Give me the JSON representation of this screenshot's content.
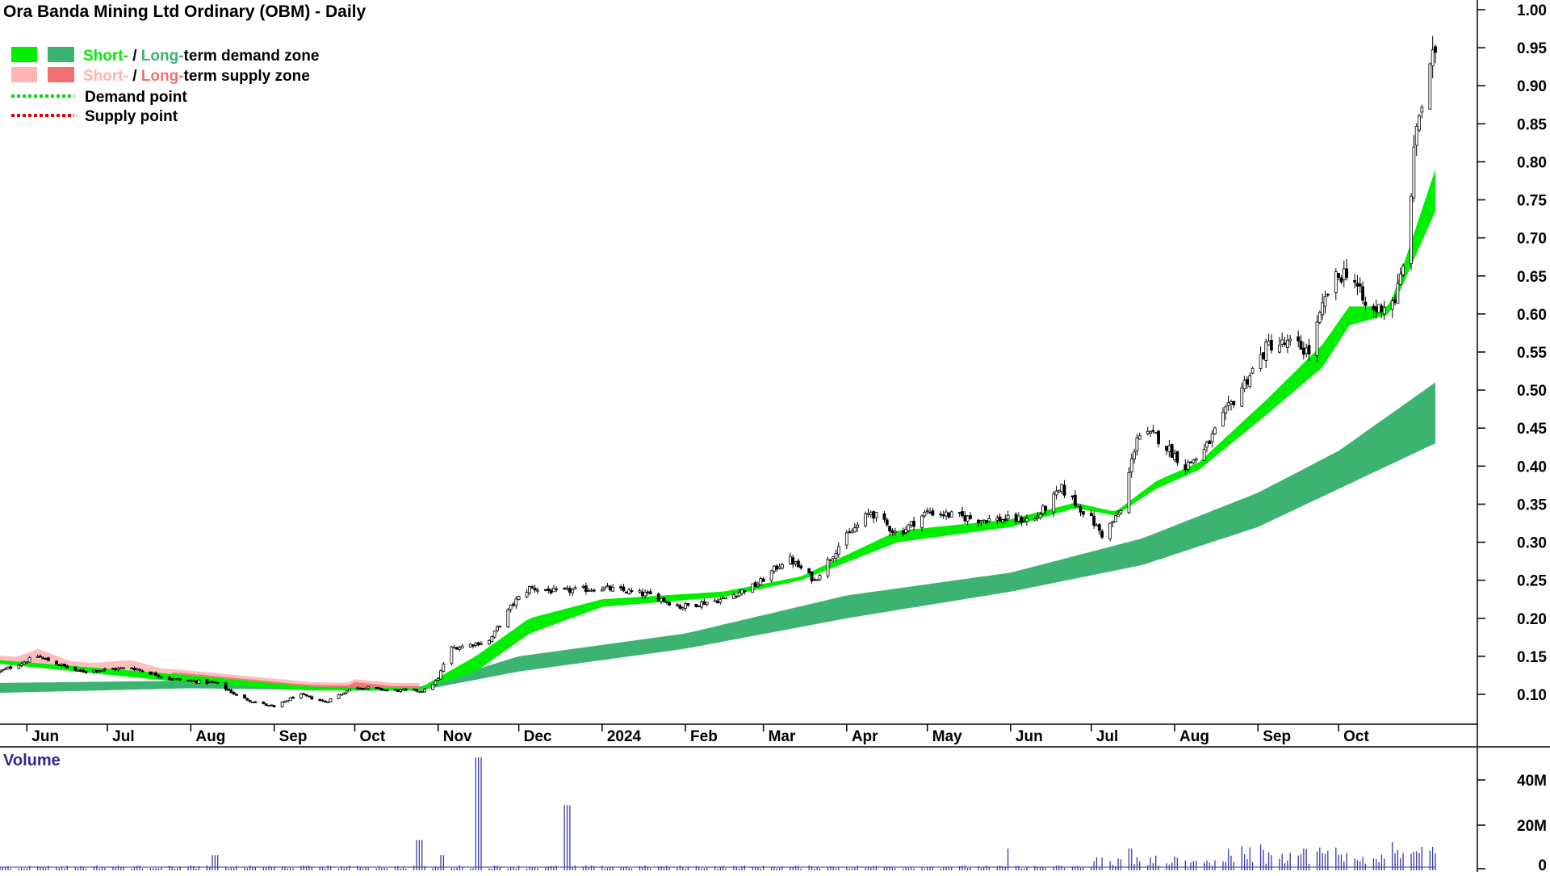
{
  "chart_data": {
    "type": "candlestick",
    "title": "Ora Banda Mining Ltd Ordinary (OBM) - Daily",
    "legend": {
      "placement": "top-left",
      "entries": [
        {
          "parts": [
            "Short-",
            " / ",
            "Long-",
            "term demand zone"
          ],
          "swatches": [
            "#00ee00",
            "#3cb371"
          ]
        },
        {
          "parts": [
            "Short-",
            " / ",
            "Long-",
            "term supply zone"
          ],
          "swatches": [
            "#ffb3b3",
            "#f07070"
          ]
        },
        {
          "label": "Demand point",
          "line_color": "#00dd00"
        },
        {
          "label": "Supply point",
          "line_color": "#dd0000"
        }
      ]
    },
    "x_axis": {
      "type": "date",
      "range": [
        "2023-05-22",
        "2024-11-06"
      ],
      "ticks": [
        {
          "label": "Jun",
          "date": "2023-06-01"
        },
        {
          "label": "Jul",
          "date": "2023-07-01"
        },
        {
          "label": "Aug",
          "date": "2023-08-01"
        },
        {
          "label": "Sep",
          "date": "2023-09-01"
        },
        {
          "label": "Oct",
          "date": "2023-10-01"
        },
        {
          "label": "Nov",
          "date": "2023-11-01"
        },
        {
          "label": "Dec",
          "date": "2023-12-01"
        },
        {
          "label": "2024",
          "date": "2024-01-01"
        },
        {
          "label": "Feb",
          "date": "2024-02-01"
        },
        {
          "label": "Mar",
          "date": "2024-03-01"
        },
        {
          "label": "Apr",
          "date": "2024-04-01"
        },
        {
          "label": "May",
          "date": "2024-05-01"
        },
        {
          "label": "Jun",
          "date": "2024-06-01"
        },
        {
          "label": "Jul",
          "date": "2024-07-01"
        },
        {
          "label": "Aug",
          "date": "2024-08-01"
        },
        {
          "label": "Sep",
          "date": "2024-09-01"
        },
        {
          "label": "Oct",
          "date": "2024-10-01"
        }
      ]
    },
    "y_axis": {
      "position": "right",
      "range": [
        0.06,
        1.0
      ],
      "ticks": [
        "0.10",
        "0.15",
        "0.20",
        "0.25",
        "0.30",
        "0.35",
        "0.40",
        "0.45",
        "0.50",
        "0.55",
        "0.60",
        "0.65",
        "0.70",
        "0.75",
        "0.80",
        "0.85",
        "0.90",
        "0.95",
        "1.00"
      ]
    },
    "grid": false,
    "price_anchors": [
      {
        "date": "2023-05-22",
        "close": 0.13
      },
      {
        "date": "2023-06-05",
        "close": 0.15
      },
      {
        "date": "2023-06-20",
        "close": 0.13
      },
      {
        "date": "2023-07-10",
        "close": 0.135
      },
      {
        "date": "2023-07-25",
        "close": 0.12
      },
      {
        "date": "2023-08-10",
        "close": 0.115
      },
      {
        "date": "2023-08-20",
        "close": 0.095
      },
      {
        "date": "2023-09-01",
        "close": 0.083
      },
      {
        "date": "2023-09-10",
        "close": 0.1
      },
      {
        "date": "2023-09-20",
        "close": 0.09
      },
      {
        "date": "2023-10-01",
        "close": 0.11
      },
      {
        "date": "2023-10-15",
        "close": 0.105
      },
      {
        "date": "2023-10-27",
        "close": 0.105
      },
      {
        "date": "2023-11-01",
        "close": 0.12
      },
      {
        "date": "2023-11-05",
        "close": 0.16
      },
      {
        "date": "2023-11-20",
        "close": 0.17
      },
      {
        "date": "2023-11-29",
        "close": 0.22
      },
      {
        "date": "2023-12-05",
        "close": 0.24
      },
      {
        "date": "2023-12-15",
        "close": 0.235
      },
      {
        "date": "2024-01-01",
        "close": 0.24
      },
      {
        "date": "2024-01-20",
        "close": 0.23
      },
      {
        "date": "2024-01-30",
        "close": 0.215
      },
      {
        "date": "2024-02-15",
        "close": 0.225
      },
      {
        "date": "2024-02-28",
        "close": 0.245
      },
      {
        "date": "2024-03-10",
        "close": 0.28
      },
      {
        "date": "2024-03-20",
        "close": 0.25
      },
      {
        "date": "2024-03-30",
        "close": 0.3
      },
      {
        "date": "2024-04-10",
        "close": 0.34
      },
      {
        "date": "2024-04-20",
        "close": 0.31
      },
      {
        "date": "2024-05-01",
        "close": 0.34
      },
      {
        "date": "2024-05-20",
        "close": 0.33
      },
      {
        "date": "2024-06-10",
        "close": 0.33
      },
      {
        "date": "2024-06-20",
        "close": 0.37
      },
      {
        "date": "2024-07-01",
        "close": 0.33
      },
      {
        "date": "2024-07-05",
        "close": 0.31
      },
      {
        "date": "2024-07-12",
        "close": 0.34
      },
      {
        "date": "2024-07-18",
        "close": 0.44
      },
      {
        "date": "2024-07-25",
        "close": 0.44
      },
      {
        "date": "2024-08-05",
        "close": 0.4
      },
      {
        "date": "2024-08-12",
        "close": 0.42
      },
      {
        "date": "2024-08-20",
        "close": 0.47
      },
      {
        "date": "2024-09-05",
        "close": 0.56
      },
      {
        "date": "2024-09-15",
        "close": 0.56
      },
      {
        "date": "2024-09-20",
        "close": 0.55
      },
      {
        "date": "2024-09-28",
        "close": 0.64
      },
      {
        "date": "2024-10-05",
        "close": 0.66
      },
      {
        "date": "2024-10-12",
        "close": 0.6
      },
      {
        "date": "2024-10-22",
        "close": 0.62
      },
      {
        "date": "2024-10-25",
        "close": 0.66
      },
      {
        "date": "2024-10-27",
        "close": 0.72
      },
      {
        "date": "2024-10-30",
        "close": 0.85
      },
      {
        "date": "2024-11-03",
        "close": 0.9
      },
      {
        "date": "2024-11-06",
        "close": 0.95
      }
    ],
    "short_term_zone": {
      "color": "#00ee00",
      "anchors": [
        {
          "date": "2023-05-22",
          "upper": 0.145,
          "lower": 0.14
        },
        {
          "date": "2023-08-01",
          "upper": 0.125,
          "lower": 0.115
        },
        {
          "date": "2023-09-15",
          "upper": 0.11,
          "lower": 0.105
        },
        {
          "date": "2023-10-25",
          "upper": 0.108,
          "lower": 0.105
        },
        {
          "date": "2023-11-15",
          "upper": 0.15,
          "lower": 0.13
        },
        {
          "date": "2023-12-05",
          "upper": 0.2,
          "lower": 0.18
        },
        {
          "date": "2024-01-01",
          "upper": 0.225,
          "lower": 0.215
        },
        {
          "date": "2024-02-15",
          "upper": 0.235,
          "lower": 0.228
        },
        {
          "date": "2024-03-15",
          "upper": 0.255,
          "lower": 0.25
        },
        {
          "date": "2024-04-20",
          "upper": 0.315,
          "lower": 0.3
        },
        {
          "date": "2024-06-01",
          "upper": 0.33,
          "lower": 0.32
        },
        {
          "date": "2024-06-25",
          "upper": 0.352,
          "lower": 0.345
        },
        {
          "date": "2024-07-10",
          "upper": 0.34,
          "lower": 0.335
        },
        {
          "date": "2024-07-25",
          "upper": 0.38,
          "lower": 0.37
        },
        {
          "date": "2024-08-10",
          "upper": 0.405,
          "lower": 0.395
        },
        {
          "date": "2024-09-05",
          "upper": 0.49,
          "lower": 0.47
        },
        {
          "date": "2024-09-25",
          "upper": 0.56,
          "lower": 0.53
        },
        {
          "date": "2024-10-05",
          "upper": 0.61,
          "lower": 0.585
        },
        {
          "date": "2024-10-20",
          "upper": 0.61,
          "lower": 0.6
        },
        {
          "date": "2024-11-06",
          "upper": 0.79,
          "lower": 0.735
        }
      ]
    },
    "long_term_zone": {
      "color": "#3cb371",
      "anchors": [
        {
          "date": "2023-05-22",
          "upper": 0.115,
          "lower": 0.102
        },
        {
          "date": "2023-08-01",
          "upper": 0.118,
          "lower": 0.108
        },
        {
          "date": "2023-10-01",
          "upper": 0.112,
          "lower": 0.105
        },
        {
          "date": "2023-10-25",
          "upper": 0.11,
          "lower": 0.105
        },
        {
          "date": "2023-12-01",
          "upper": 0.15,
          "lower": 0.13
        },
        {
          "date": "2024-02-01",
          "upper": 0.18,
          "lower": 0.16
        },
        {
          "date": "2024-04-01",
          "upper": 0.23,
          "lower": 0.2
        },
        {
          "date": "2024-06-01",
          "upper": 0.26,
          "lower": 0.235
        },
        {
          "date": "2024-07-20",
          "upper": 0.305,
          "lower": 0.27
        },
        {
          "date": "2024-09-01",
          "upper": 0.365,
          "lower": 0.32
        },
        {
          "date": "2024-10-01",
          "upper": 0.42,
          "lower": 0.37
        },
        {
          "date": "2024-11-06",
          "upper": 0.51,
          "lower": 0.43
        }
      ]
    },
    "supply_zone_segments": [
      {
        "start": "2023-05-22",
        "end": "2023-10-25",
        "color": "#ffb3b3"
      },
      {
        "start": "2023-07-25",
        "end": "2023-10-25",
        "color": "#f07070"
      }
    ],
    "volume": {
      "label": "Volume",
      "y_ticks": [
        "0",
        "20M",
        "40M"
      ],
      "range": [
        0,
        55000000
      ],
      "bar_color": "#3a3aa8",
      "spikes": [
        {
          "date": "2023-08-10",
          "value": 7000000
        },
        {
          "date": "2023-10-25",
          "value": 14000000
        },
        {
          "date": "2023-11-03",
          "value": 7000000
        },
        {
          "date": "2023-11-16",
          "value": 52000000
        },
        {
          "date": "2023-12-19",
          "value": 30000000
        },
        {
          "date": "2024-06-01",
          "value": 10000000
        },
        {
          "date": "2024-07-15",
          "value": 10000000
        },
        {
          "date": "2024-09-01",
          "value": 12000000
        },
        {
          "date": "2024-10-20",
          "value": 13000000
        }
      ]
    }
  }
}
